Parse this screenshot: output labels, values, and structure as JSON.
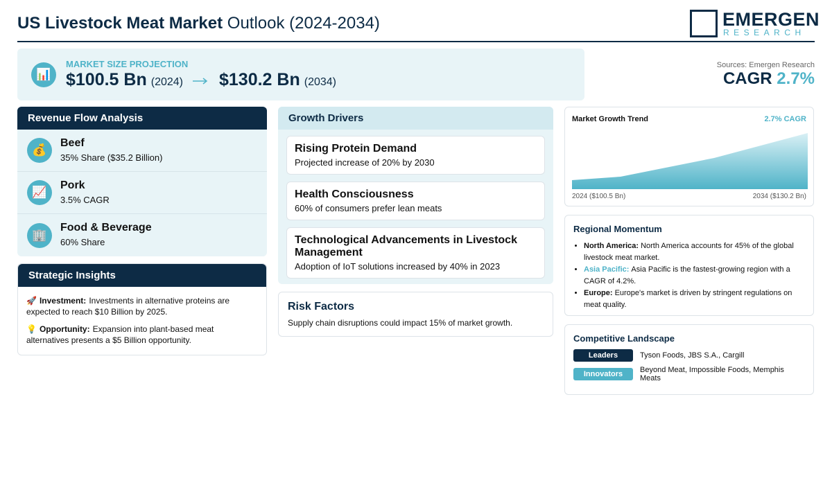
{
  "header": {
    "title_bold": "US Livestock Meat Market",
    "title_rest": "Outlook (2024-2034)",
    "logo_main": "EMERGEN",
    "logo_sub": "RESEARCH"
  },
  "projection": {
    "icon": "📊",
    "label": "MARKET SIZE PROJECTION",
    "start_value": "$100.5 Bn",
    "start_year": "(2024)",
    "end_value": "$130.2 Bn",
    "end_year": "(2034)"
  },
  "source": {
    "text": "Sources: Emergen Research",
    "cagr_label": "CAGR",
    "cagr_value": "2.7%"
  },
  "revenue_flow": {
    "title": "Revenue Flow Analysis",
    "items": [
      {
        "icon": "💰",
        "name": "Beef",
        "detail": "35% Share ($35.2 Billion)"
      },
      {
        "icon": "📈",
        "name": "Pork",
        "detail": "3.5% CAGR"
      },
      {
        "icon": "🏢",
        "name": "Food & Beverage",
        "detail": "60% Share"
      }
    ]
  },
  "strategic_insights": {
    "title": "Strategic Insights",
    "items": [
      {
        "icon": "🚀",
        "label": "Investment:",
        "text": "Investments in alternative proteins are expected to reach $10 Billion by 2025."
      },
      {
        "icon": "💡",
        "label": "Opportunity:",
        "text": "Expansion into plant-based meat alternatives presents a $5 Billion opportunity."
      }
    ]
  },
  "growth_drivers": {
    "title": "Growth Drivers",
    "items": [
      {
        "name": "Rising Protein Demand",
        "detail": "Projected increase of 20% by 2030"
      },
      {
        "name": "Health Consciousness",
        "detail": "60% of consumers prefer lean meats"
      },
      {
        "name": "Technological Advancements in Livestock Management",
        "detail": "Adoption of IoT solutions increased by 40% in 2023"
      }
    ]
  },
  "risk_factors": {
    "title": "Risk Factors",
    "text": "Supply chain disruptions could impact 15% of market growth."
  },
  "trend": {
    "title": "Market Growth Trend",
    "badge": "2.7% CAGR",
    "start_label": "2024 ($100.5 Bn)",
    "end_label": "2034 ($130.2 Bn)"
  },
  "regional": {
    "title": "Regional Momentum",
    "items": [
      {
        "label": "North America:",
        "text": "North America accounts for 45% of the global livestock meat market."
      },
      {
        "label": "Asia Pacific:",
        "text": "Asia Pacific is the fastest-growing region with a CAGR of 4.2%."
      },
      {
        "label": "Europe:",
        "text": "Europe's market is driven by stringent regulations on meat quality."
      }
    ]
  },
  "competitive": {
    "title": "Competitive Landscape",
    "rows": [
      {
        "tag": "Leaders",
        "text": "Tyson Foods, JBS S.A., Cargill"
      },
      {
        "tag": "Innovators",
        "text": "Beyond Meat, Impossible Foods, Memphis Meats"
      }
    ]
  }
}
